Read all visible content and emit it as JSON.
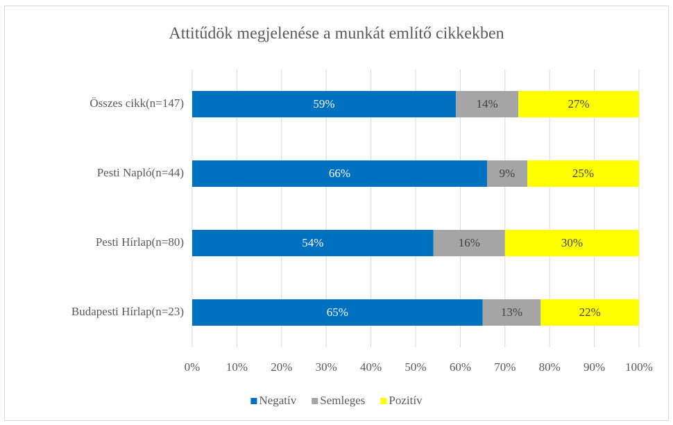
{
  "chart_data": {
    "type": "stacked-barh",
    "title": "Attitűdök megjelenése a munkát említő cikkekben",
    "categories": [
      "Összes cikk(n=147)",
      "Pesti Napló(n=44)",
      "Pesti Hírlap(n=80)",
      "Budapesti Hírlap(n=23)"
    ],
    "series": [
      {
        "name": "Negatív",
        "color": "#0070c0",
        "values": [
          59,
          66,
          54,
          65
        ],
        "value_labels": [
          "59%",
          "66%",
          "54%",
          "65%"
        ]
      },
      {
        "name": "Semleges",
        "color": "#a5a5a5",
        "values": [
          14,
          9,
          16,
          13
        ],
        "value_labels": [
          "14%",
          "9%",
          "16%",
          "13%"
        ]
      },
      {
        "name": "Pozitív",
        "color": "#ffff00",
        "values": [
          27,
          25,
          30,
          22
        ],
        "value_labels": [
          "27%",
          "25%",
          "30%",
          "22%"
        ]
      }
    ],
    "xlim": [
      0,
      100
    ],
    "xticks": [
      {
        "value": 0,
        "label": "0%"
      },
      {
        "value": 10,
        "label": "10%"
      },
      {
        "value": 20,
        "label": "20%"
      },
      {
        "value": 30,
        "label": "30%"
      },
      {
        "value": 40,
        "label": "40%"
      },
      {
        "value": 50,
        "label": "50%"
      },
      {
        "value": 60,
        "label": "60%"
      },
      {
        "value": 70,
        "label": "70%"
      },
      {
        "value": 80,
        "label": "80%"
      },
      {
        "value": 90,
        "label": "90%"
      },
      {
        "value": 100,
        "label": "100%"
      }
    ],
    "grid": true,
    "legend": "bottom"
  }
}
